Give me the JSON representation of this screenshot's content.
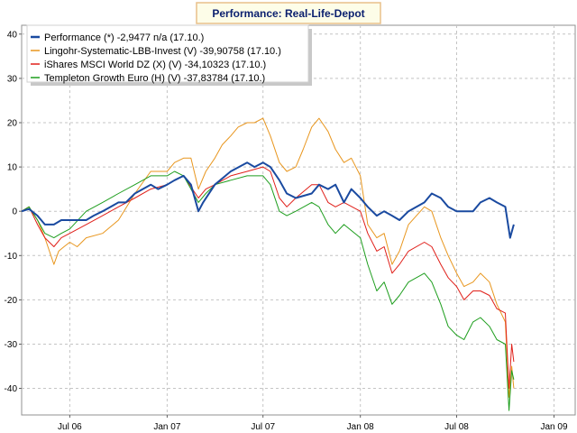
{
  "chart_data": {
    "type": "line",
    "title": "Performance: Real-Life-Depot",
    "xlabel": "",
    "ylabel": "",
    "ylim": [
      -46,
      42
    ],
    "y_ticks": [
      40,
      30,
      20,
      10,
      0,
      -10,
      -20,
      -30,
      -40
    ],
    "x_range": [
      "2006-04-01",
      "2009-02-10"
    ],
    "x_ticks": [
      {
        "date": "2006-07-01",
        "label": "Jul 06"
      },
      {
        "date": "2007-01-01",
        "label": "Jan 07"
      },
      {
        "date": "2007-07-01",
        "label": "Jul 07"
      },
      {
        "date": "2008-01-01",
        "label": "Jan 08"
      },
      {
        "date": "2008-07-01",
        "label": "Jul 08"
      },
      {
        "date": "2009-01-01",
        "label": "Jan 09"
      }
    ],
    "legend_position": "top-left",
    "grid": true,
    "series": [
      {
        "name": "Performance (*) -2,9477 n/a (17.10.)",
        "color": "#1a4aa0",
        "width": 2,
        "points": [
          [
            "2006-04-01",
            0
          ],
          [
            "2006-04-15",
            0.5
          ],
          [
            "2006-05-01",
            -1
          ],
          [
            "2006-05-15",
            -3
          ],
          [
            "2006-06-01",
            -3
          ],
          [
            "2006-06-15",
            -2
          ],
          [
            "2006-07-01",
            -2
          ],
          [
            "2006-08-01",
            -2
          ],
          [
            "2006-08-15",
            -1
          ],
          [
            "2006-09-01",
            0
          ],
          [
            "2006-10-01",
            2
          ],
          [
            "2006-10-15",
            2
          ],
          [
            "2006-11-01",
            4
          ],
          [
            "2006-12-01",
            6
          ],
          [
            "2006-12-15",
            5
          ],
          [
            "2007-01-01",
            6
          ],
          [
            "2007-01-15",
            7
          ],
          [
            "2007-02-01",
            8
          ],
          [
            "2007-02-15",
            6
          ],
          [
            "2007-03-01",
            0
          ],
          [
            "2007-03-10",
            2
          ],
          [
            "2007-04-01",
            6
          ],
          [
            "2007-05-01",
            9
          ],
          [
            "2007-06-01",
            11
          ],
          [
            "2007-06-15",
            10
          ],
          [
            "2007-07-01",
            11
          ],
          [
            "2007-07-15",
            10
          ],
          [
            "2007-08-01",
            7
          ],
          [
            "2007-08-15",
            4
          ],
          [
            "2007-09-01",
            3
          ],
          [
            "2007-10-01",
            4
          ],
          [
            "2007-10-15",
            6
          ],
          [
            "2007-11-01",
            5
          ],
          [
            "2007-11-15",
            6
          ],
          [
            "2007-12-01",
            2
          ],
          [
            "2007-12-15",
            5
          ],
          [
            "2008-01-01",
            3
          ],
          [
            "2008-01-15",
            1
          ],
          [
            "2008-02-01",
            -1
          ],
          [
            "2008-02-15",
            0
          ],
          [
            "2008-03-01",
            -1
          ],
          [
            "2008-03-15",
            -2
          ],
          [
            "2008-04-01",
            0
          ],
          [
            "2008-05-01",
            2
          ],
          [
            "2008-05-15",
            4
          ],
          [
            "2008-06-01",
            3
          ],
          [
            "2008-06-15",
            1
          ],
          [
            "2008-07-01",
            0
          ],
          [
            "2008-07-15",
            0
          ],
          [
            "2008-08-01",
            0
          ],
          [
            "2008-08-15",
            2
          ],
          [
            "2008-09-01",
            3
          ],
          [
            "2008-09-15",
            2
          ],
          [
            "2008-10-01",
            1
          ],
          [
            "2008-10-10",
            -6
          ],
          [
            "2008-10-17",
            -3
          ]
        ]
      },
      {
        "name": "Lingohr-Systematic-LBB-Invest (V) -39,90758 (17.10.)",
        "color": "#e8961e",
        "width": 1,
        "points": [
          [
            "2006-04-01",
            0
          ],
          [
            "2006-04-15",
            1
          ],
          [
            "2006-05-01",
            -2
          ],
          [
            "2006-05-15",
            -6
          ],
          [
            "2006-06-01",
            -12
          ],
          [
            "2006-06-10",
            -9
          ],
          [
            "2006-06-20",
            -8
          ],
          [
            "2006-07-01",
            -7
          ],
          [
            "2006-07-15",
            -8
          ],
          [
            "2006-08-01",
            -6
          ],
          [
            "2006-09-01",
            -5
          ],
          [
            "2006-10-01",
            -2
          ],
          [
            "2006-11-01",
            4
          ],
          [
            "2006-12-01",
            9
          ],
          [
            "2006-12-15",
            9
          ],
          [
            "2007-01-01",
            9
          ],
          [
            "2007-01-15",
            11
          ],
          [
            "2007-02-01",
            12
          ],
          [
            "2007-02-15",
            12
          ],
          [
            "2007-03-01",
            5
          ],
          [
            "2007-03-15",
            9
          ],
          [
            "2007-04-01",
            12
          ],
          [
            "2007-04-15",
            15
          ],
          [
            "2007-05-01",
            17
          ],
          [
            "2007-05-15",
            19
          ],
          [
            "2007-06-01",
            20
          ],
          [
            "2007-06-15",
            20
          ],
          [
            "2007-07-01",
            21
          ],
          [
            "2007-07-15",
            17
          ],
          [
            "2007-08-01",
            11
          ],
          [
            "2007-08-15",
            9
          ],
          [
            "2007-09-01",
            10
          ],
          [
            "2007-09-15",
            14
          ],
          [
            "2007-10-01",
            19
          ],
          [
            "2007-10-15",
            21
          ],
          [
            "2007-11-01",
            18
          ],
          [
            "2007-11-15",
            14
          ],
          [
            "2007-12-01",
            11
          ],
          [
            "2007-12-15",
            12
          ],
          [
            "2008-01-01",
            8
          ],
          [
            "2008-01-15",
            -3
          ],
          [
            "2008-02-01",
            -6
          ],
          [
            "2008-02-15",
            -5
          ],
          [
            "2008-03-01",
            -12
          ],
          [
            "2008-03-15",
            -9
          ],
          [
            "2008-04-01",
            -3
          ],
          [
            "2008-05-01",
            1
          ],
          [
            "2008-05-15",
            0
          ],
          [
            "2008-06-01",
            -6
          ],
          [
            "2008-06-15",
            -10
          ],
          [
            "2008-07-01",
            -14
          ],
          [
            "2008-07-15",
            -17
          ],
          [
            "2008-08-01",
            -16
          ],
          [
            "2008-08-15",
            -14
          ],
          [
            "2008-09-01",
            -16
          ],
          [
            "2008-09-15",
            -21
          ],
          [
            "2008-10-01",
            -25
          ],
          [
            "2008-10-08",
            -42
          ],
          [
            "2008-10-13",
            -35
          ],
          [
            "2008-10-17",
            -40
          ]
        ]
      },
      {
        "name": "iShares MSCI World DZ (X) (V) -34,10323 (17.10.)",
        "color": "#e0201a",
        "width": 1,
        "points": [
          [
            "2006-04-01",
            0
          ],
          [
            "2006-04-15",
            1
          ],
          [
            "2006-05-01",
            -3
          ],
          [
            "2006-05-15",
            -6
          ],
          [
            "2006-06-01",
            -8
          ],
          [
            "2006-06-15",
            -6
          ],
          [
            "2006-07-01",
            -5
          ],
          [
            "2006-08-01",
            -3
          ],
          [
            "2006-09-01",
            -1
          ],
          [
            "2006-10-01",
            1
          ],
          [
            "2006-11-01",
            3
          ],
          [
            "2006-12-01",
            5
          ],
          [
            "2007-01-01",
            6
          ],
          [
            "2007-01-15",
            7
          ],
          [
            "2007-02-01",
            8
          ],
          [
            "2007-03-01",
            3
          ],
          [
            "2007-03-15",
            5
          ],
          [
            "2007-04-01",
            6
          ],
          [
            "2007-05-01",
            8
          ],
          [
            "2007-06-01",
            9
          ],
          [
            "2007-07-01",
            10
          ],
          [
            "2007-07-15",
            9
          ],
          [
            "2007-08-01",
            3
          ],
          [
            "2007-08-15",
            1
          ],
          [
            "2007-09-01",
            3
          ],
          [
            "2007-10-01",
            6
          ],
          [
            "2007-10-15",
            6
          ],
          [
            "2007-11-01",
            2
          ],
          [
            "2007-11-15",
            1
          ],
          [
            "2007-12-01",
            2
          ],
          [
            "2008-01-01",
            0
          ],
          [
            "2008-01-15",
            -5
          ],
          [
            "2008-02-01",
            -9
          ],
          [
            "2008-02-15",
            -8
          ],
          [
            "2008-03-01",
            -14
          ],
          [
            "2008-03-15",
            -12
          ],
          [
            "2008-04-01",
            -9
          ],
          [
            "2008-05-01",
            -7
          ],
          [
            "2008-05-15",
            -8
          ],
          [
            "2008-06-01",
            -12
          ],
          [
            "2008-06-15",
            -15
          ],
          [
            "2008-07-01",
            -17
          ],
          [
            "2008-07-15",
            -20
          ],
          [
            "2008-08-01",
            -18
          ],
          [
            "2008-08-15",
            -18
          ],
          [
            "2008-09-01",
            -19
          ],
          [
            "2008-09-15",
            -22
          ],
          [
            "2008-10-01",
            -23
          ],
          [
            "2008-10-08",
            -40
          ],
          [
            "2008-10-13",
            -30
          ],
          [
            "2008-10-17",
            -34
          ]
        ]
      },
      {
        "name": "Templeton Growth Euro (H) (V) -37,83784 (17.10.)",
        "color": "#1e9e1e",
        "width": 1,
        "points": [
          [
            "2006-04-01",
            0
          ],
          [
            "2006-04-15",
            1
          ],
          [
            "2006-05-01",
            -2
          ],
          [
            "2006-05-15",
            -5
          ],
          [
            "2006-06-01",
            -6
          ],
          [
            "2006-06-15",
            -5
          ],
          [
            "2006-07-01",
            -4
          ],
          [
            "2006-08-01",
            0
          ],
          [
            "2006-09-01",
            2
          ],
          [
            "2006-10-01",
            4
          ],
          [
            "2006-11-01",
            6
          ],
          [
            "2006-12-01",
            8
          ],
          [
            "2007-01-01",
            8
          ],
          [
            "2007-01-15",
            9
          ],
          [
            "2007-02-01",
            8
          ],
          [
            "2007-03-01",
            2
          ],
          [
            "2007-03-15",
            4
          ],
          [
            "2007-04-01",
            6
          ],
          [
            "2007-05-01",
            7
          ],
          [
            "2007-06-01",
            8
          ],
          [
            "2007-07-01",
            8
          ],
          [
            "2007-07-15",
            6
          ],
          [
            "2007-08-01",
            0
          ],
          [
            "2007-08-15",
            -1
          ],
          [
            "2007-09-01",
            0
          ],
          [
            "2007-10-01",
            2
          ],
          [
            "2007-10-15",
            1
          ],
          [
            "2007-11-01",
            -3
          ],
          [
            "2007-11-15",
            -5
          ],
          [
            "2007-12-01",
            -3
          ],
          [
            "2008-01-01",
            -6
          ],
          [
            "2008-01-15",
            -12
          ],
          [
            "2008-02-01",
            -18
          ],
          [
            "2008-02-15",
            -16
          ],
          [
            "2008-03-01",
            -21
          ],
          [
            "2008-03-15",
            -19
          ],
          [
            "2008-04-01",
            -16
          ],
          [
            "2008-05-01",
            -14
          ],
          [
            "2008-05-15",
            -16
          ],
          [
            "2008-06-01",
            -21
          ],
          [
            "2008-06-15",
            -26
          ],
          [
            "2008-07-01",
            -28
          ],
          [
            "2008-07-15",
            -29
          ],
          [
            "2008-08-01",
            -25
          ],
          [
            "2008-08-15",
            -24
          ],
          [
            "2008-09-01",
            -26
          ],
          [
            "2008-09-15",
            -29
          ],
          [
            "2008-10-01",
            -30
          ],
          [
            "2008-10-08",
            -45
          ],
          [
            "2008-10-13",
            -36
          ],
          [
            "2008-10-17",
            -38
          ]
        ]
      }
    ]
  }
}
